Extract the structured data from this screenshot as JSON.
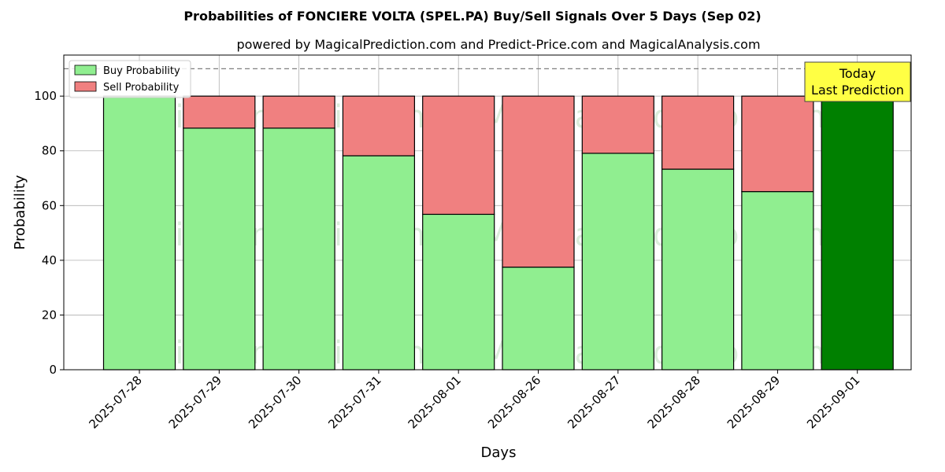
{
  "title": "Probabilities of FONCIERE VOLTA (SPEL.PA) Buy/Sell Signals Over 5 Days (Sep 02)",
  "subtitle": "powered by MagicalPrediction.com and Predict-Price.com and MagicalAnalysis.com",
  "watermarks": [
    "MagicalAnalysis.com",
    "MagicalPrediction.com"
  ],
  "annotation": {
    "line1": "Today",
    "line2": "Last Prediction"
  },
  "colors": {
    "buy": "#90ee90",
    "sell": "#f08080",
    "today_buy": "#008000",
    "annotation_bg": "#ffff44",
    "grid": "#b0b0b0"
  },
  "chart_data": {
    "type": "bar",
    "stacked": true,
    "xlabel": "Days",
    "ylabel": "Probability",
    "ylim": [
      0,
      115
    ],
    "yticks": [
      0,
      20,
      40,
      60,
      80,
      100
    ],
    "reference_line": 110,
    "grid": true,
    "legend_position": "top-left",
    "categories": [
      "2025-07-28",
      "2025-07-29",
      "2025-07-30",
      "2025-07-31",
      "2025-08-01",
      "2025-08-26",
      "2025-08-27",
      "2025-08-28",
      "2025-08-29",
      "2025-09-01"
    ],
    "series": [
      {
        "name": "Buy Probability",
        "values": [
          100,
          88.3,
          88.3,
          78.2,
          56.8,
          37.5,
          79.1,
          73.3,
          65.1,
          100
        ]
      },
      {
        "name": "Sell Probability",
        "values": [
          0,
          11.7,
          11.7,
          21.8,
          43.2,
          62.5,
          20.9,
          26.7,
          34.9,
          0
        ]
      }
    ]
  }
}
